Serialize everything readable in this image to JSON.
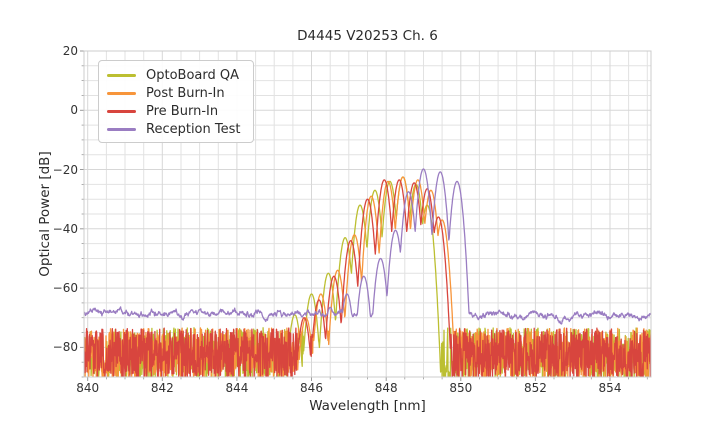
{
  "chart_data": {
    "type": "line",
    "title": "D4445 V20253 Ch. 6",
    "xlabel": "Wavelength [nm]",
    "ylabel": "Optical Power [dB]",
    "xlim": [
      839.9,
      855.1
    ],
    "ylim": [
      -90,
      20
    ],
    "xticks": [
      840,
      842,
      844,
      846,
      848,
      850,
      852,
      854
    ],
    "yticks": [
      20,
      0,
      -20,
      -40,
      -60,
      -80
    ],
    "minor_x_step": 0.5,
    "minor_y_step": 5,
    "grid": "on",
    "legend_position": "upper left",
    "grid_color": "#d7d7d7",
    "minor_grid_color": "#e2e2e2",
    "spine_color": "#cccccc",
    "mode_half_spacing_nm": 0.225,
    "valley_depth_db": 22,
    "series": [
      {
        "name": "OptoBoard QA",
        "color": "#bcbf31",
        "floor": {
          "style": "spiky",
          "mean_db": -82.2,
          "amp_db": 8.8
        },
        "modes": [
          [
            845.55,
            -69
          ],
          [
            846.0,
            -62
          ],
          [
            846.45,
            -55
          ],
          [
            846.9,
            -43
          ],
          [
            847.3,
            -32
          ],
          [
            847.7,
            -27
          ],
          [
            848.1,
            -24
          ],
          [
            848.45,
            -22.5
          ],
          [
            848.8,
            -25
          ],
          [
            849.1,
            -32
          ]
        ]
      },
      {
        "name": "Post Burn-In",
        "color": "#f7953b",
        "floor": {
          "style": "spiky",
          "mean_db": -82.2,
          "amp_db": 8.8
        },
        "modes": [
          [
            845.85,
            -70
          ],
          [
            846.25,
            -62
          ],
          [
            846.7,
            -54
          ],
          [
            847.15,
            -42
          ],
          [
            847.6,
            -29
          ],
          [
            848.05,
            -24
          ],
          [
            848.45,
            -22.5
          ],
          [
            848.85,
            -23.5
          ],
          [
            849.2,
            -27
          ],
          [
            849.5,
            -37
          ]
        ]
      },
      {
        "name": "Pre Burn-In",
        "color": "#d8453e",
        "floor": {
          "style": "spiky",
          "mean_db": -82.2,
          "amp_db": 8.8
        },
        "modes": [
          [
            845.8,
            -70
          ],
          [
            846.2,
            -64
          ],
          [
            846.6,
            -56
          ],
          [
            847.05,
            -44
          ],
          [
            847.5,
            -30
          ],
          [
            847.95,
            -23.5
          ],
          [
            848.35,
            -23.5
          ],
          [
            848.75,
            -24.5
          ],
          [
            849.1,
            -26.5
          ],
          [
            849.4,
            -36
          ]
        ]
      },
      {
        "name": "Reception Test",
        "color": "#9a7dc2",
        "floor": {
          "style": "smooth",
          "mean_db": -68.2,
          "amp_db": 0.9,
          "drift_db_per_nm": -0.08
        },
        "modes": [
          [
            846.5,
            -66.5
          ],
          [
            846.95,
            -62
          ],
          [
            847.4,
            -56
          ],
          [
            847.85,
            -50
          ],
          [
            848.25,
            -40.5
          ],
          [
            848.6,
            -27.5
          ],
          [
            849.0,
            -19.8
          ],
          [
            849.45,
            -20.8
          ],
          [
            849.9,
            -24
          ]
        ]
      }
    ]
  }
}
